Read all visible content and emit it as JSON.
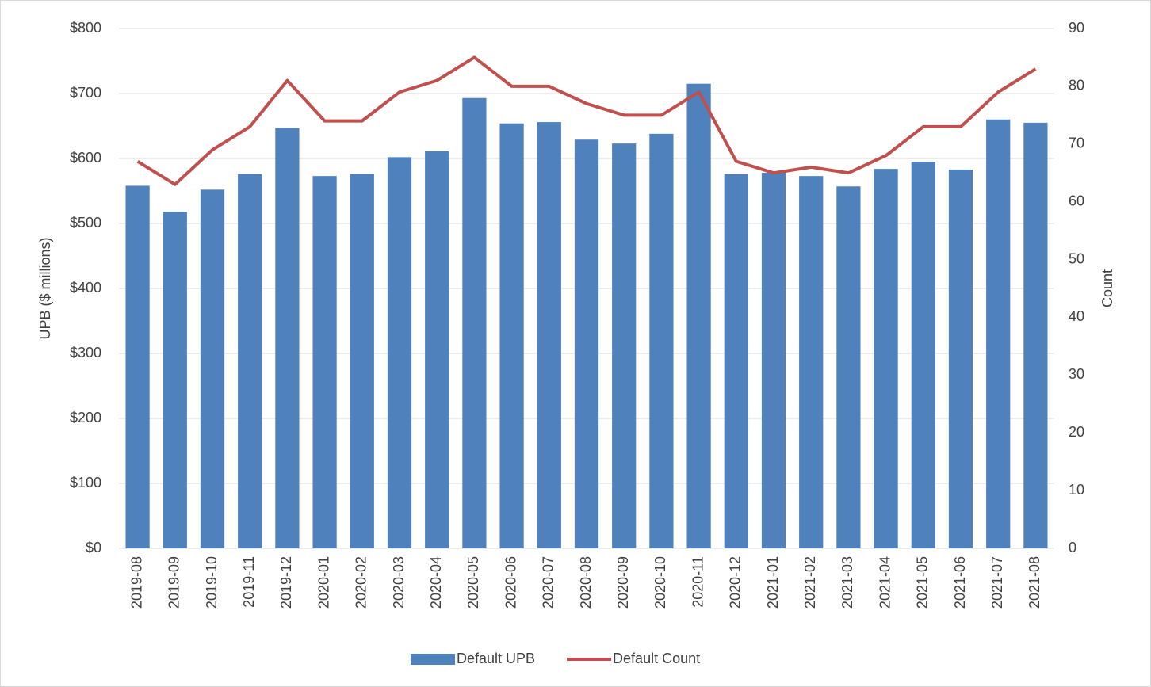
{
  "chart_data": {
    "type": "bar-line",
    "categories": [
      "2019-08",
      "2019-09",
      "2019-10",
      "2019-11",
      "2019-12",
      "2020-01",
      "2020-02",
      "2020-03",
      "2020-04",
      "2020-05",
      "2020-06",
      "2020-07",
      "2020-08",
      "2020-09",
      "2020-10",
      "2020-11",
      "2020-12",
      "2021-01",
      "2021-02",
      "2021-03",
      "2021-04",
      "2021-05",
      "2021-06",
      "2021-07",
      "2021-08"
    ],
    "series": [
      {
        "name": "Default UPB",
        "type": "bar",
        "color": "#4f81bd",
        "axis": "y",
        "values": [
          558,
          518,
          552,
          576,
          647,
          573,
          576,
          602,
          611,
          693,
          654,
          656,
          629,
          623,
          638,
          715,
          576,
          578,
          573,
          557,
          584,
          595,
          583,
          660,
          655
        ]
      },
      {
        "name": "Default Count",
        "type": "line",
        "color": "#c0504d",
        "axis": "y2",
        "values": [
          67,
          63,
          69,
          73,
          81,
          74,
          74,
          79,
          81,
          85,
          80,
          80,
          77,
          75,
          75,
          79,
          67,
          65,
          66,
          65,
          68,
          73,
          73,
          79,
          83
        ]
      }
    ],
    "y_label": "UPB ($ millions)",
    "y2_label": "Count",
    "ylim": [
      0,
      800
    ],
    "yticks": [
      {
        "value": 0,
        "label": "$0"
      },
      {
        "value": 100,
        "label": "$100"
      },
      {
        "value": 200,
        "label": "$200"
      },
      {
        "value": 300,
        "label": "$300"
      },
      {
        "value": 400,
        "label": "$400"
      },
      {
        "value": 500,
        "label": "$500"
      },
      {
        "value": 600,
        "label": "$600"
      },
      {
        "value": 700,
        "label": "$700"
      },
      {
        "value": 800,
        "label": "$800"
      }
    ],
    "y2lim": [
      0,
      90
    ],
    "y2ticks": [
      0,
      10,
      20,
      30,
      40,
      50,
      60,
      70,
      80,
      90
    ],
    "grid": true,
    "legend": "bottom"
  }
}
